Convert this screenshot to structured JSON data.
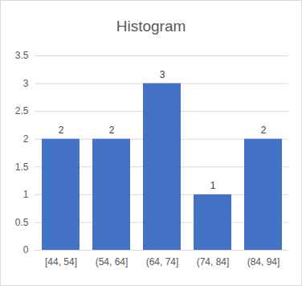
{
  "chart_data": {
    "type": "histogram",
    "title": "Histogram",
    "categories": [
      "[44, 54]",
      "(54, 64]",
      "(64, 74]",
      "(74, 84]",
      "(84, 94]"
    ],
    "values": [
      2,
      2,
      3,
      1,
      2
    ],
    "color": "#4472c4",
    "ylim": [
      0,
      3.5
    ],
    "yticks": [
      0,
      0.5,
      1,
      1.5,
      2,
      2.5,
      3,
      3.5
    ],
    "grid": true,
    "data_labels": true
  }
}
